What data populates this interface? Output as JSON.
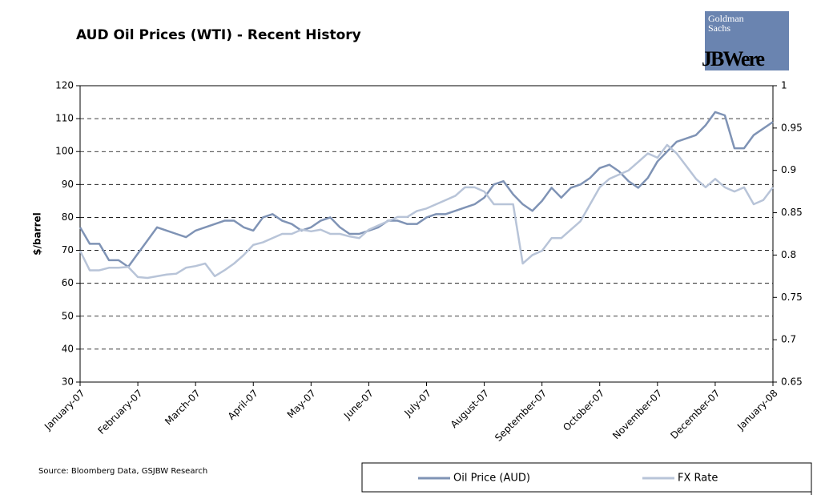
{
  "chart_data": {
    "type": "line",
    "title": "AUD Oil Prices (WTI) - Recent History",
    "ylabel": "$/barrel",
    "source": "Source: Bloomberg Data, GSJBW Research",
    "logo": [
      "Goldman",
      "Sachs",
      "JBWere"
    ],
    "categories": [
      "January-07",
      null,
      null,
      null,
      null,
      null,
      "February-07",
      null,
      null,
      null,
      null,
      null,
      "March-07",
      null,
      null,
      null,
      null,
      null,
      "April-07",
      null,
      null,
      null,
      null,
      null,
      "May-07",
      null,
      null,
      null,
      null,
      null,
      "June-07",
      null,
      null,
      null,
      null,
      null,
      "July-07",
      null,
      null,
      null,
      null,
      null,
      "August-07",
      null,
      null,
      null,
      null,
      null,
      "September-07",
      null,
      null,
      null,
      null,
      null,
      "October-07",
      null,
      null,
      null,
      null,
      null,
      "November-07",
      null,
      null,
      null,
      null,
      null,
      "December-07",
      null,
      null,
      null,
      null,
      null,
      "January-08"
    ],
    "series": [
      {
        "name": "Oil Price (AUD)",
        "color": "#7f93b5",
        "values": [
          77,
          72,
          72,
          67,
          67,
          65,
          69,
          73,
          77,
          76,
          75,
          74,
          76,
          77,
          78,
          79,
          79,
          77,
          76,
          80,
          81,
          79,
          78,
          76,
          77,
          79,
          80,
          77,
          75,
          75,
          76,
          77,
          79,
          79,
          78,
          78,
          80,
          81,
          81,
          82,
          83,
          84,
          86,
          90,
          91,
          87,
          84,
          82,
          85,
          89,
          86,
          89,
          90,
          92,
          95,
          96,
          94,
          91,
          89,
          92,
          97,
          100,
          103,
          104,
          105,
          108,
          112,
          111,
          101,
          101,
          105,
          107,
          109
        ]
      },
      {
        "name": "FX Rate",
        "color": "#b8c4d8",
        "axis": "y2",
        "values": [
          0.805,
          0.782,
          0.782,
          0.785,
          0.785,
          0.786,
          0.774,
          0.773,
          0.775,
          0.777,
          0.778,
          0.785,
          0.787,
          0.79,
          0.775,
          0.782,
          0.79,
          0.8,
          0.812,
          0.815,
          0.82,
          0.825,
          0.825,
          0.83,
          0.828,
          0.83,
          0.825,
          0.825,
          0.822,
          0.82,
          0.83,
          0.835,
          0.84,
          0.845,
          0.845,
          0.852,
          0.855,
          0.86,
          0.865,
          0.87,
          0.88,
          0.88,
          0.875,
          0.86,
          0.86,
          0.86,
          0.79,
          0.8,
          0.805,
          0.82,
          0.82,
          0.83,
          0.84,
          0.86,
          0.88,
          0.89,
          0.895,
          0.9,
          0.91,
          0.92,
          0.915,
          0.93,
          0.92,
          0.905,
          0.89,
          0.88,
          0.89,
          0.88,
          0.875,
          0.88,
          0.86,
          0.865,
          0.88
        ]
      }
    ],
    "ylim": [
      30,
      120
    ],
    "yticks": [
      30,
      40,
      50,
      60,
      70,
      80,
      90,
      100,
      110,
      120
    ],
    "y2lim": [
      0.65,
      1
    ],
    "y2ticks": [
      0.65,
      0.7,
      0.75,
      0.8,
      0.85,
      0.9,
      0.95,
      1
    ],
    "grid": true,
    "legend": "bottom-right"
  }
}
